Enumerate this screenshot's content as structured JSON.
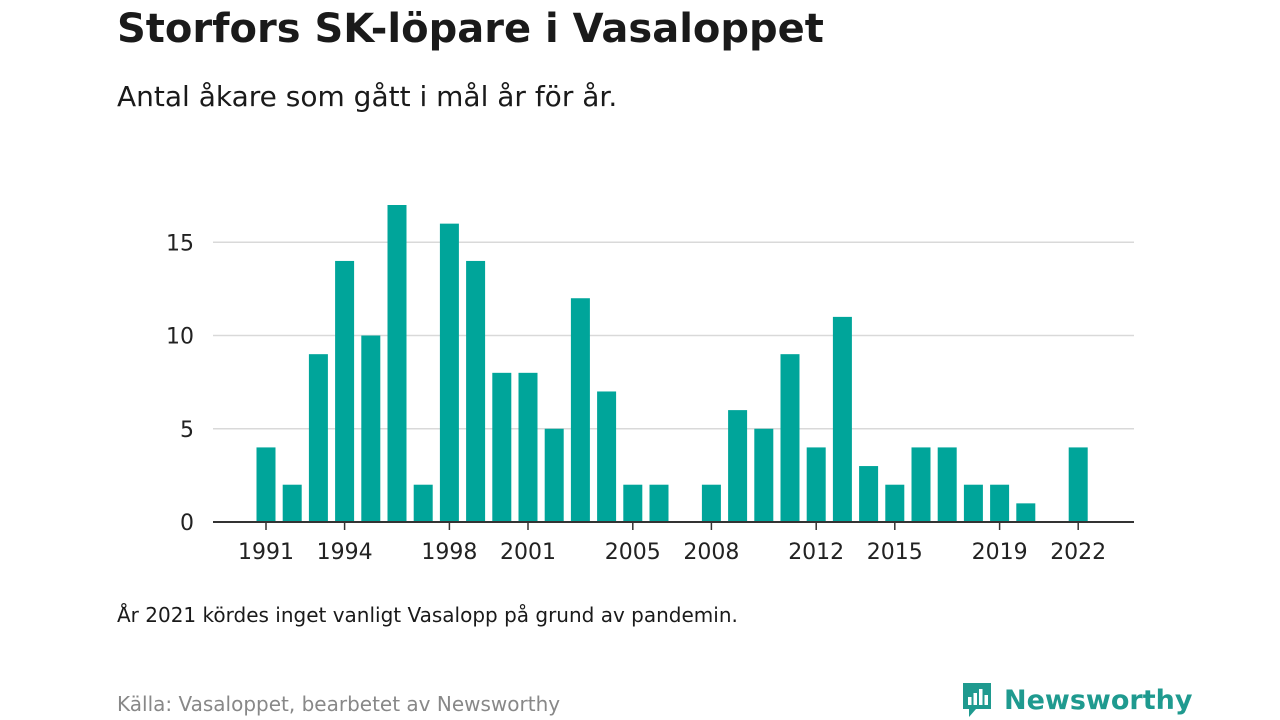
{
  "title": "Storfors SK-löpare i Vasaloppet",
  "subtitle": "Antal åkare som gått i mål år för år.",
  "note": "År 2021 kördes inget vanligt Vasalopp på grund av pandemin.",
  "source": "Källa: Vasaloppet, bearbetet av Newsworthy",
  "brand": {
    "name": "Newsworthy",
    "icon": "newsworthy-logo-icon",
    "color": "#1f9a8f"
  },
  "chart_data": {
    "type": "bar",
    "title": "",
    "xlabel": "",
    "ylabel": "",
    "bar_color": "#00a59a",
    "grid": true,
    "ylim": [
      0,
      17
    ],
    "yticks": [
      0,
      5,
      10,
      15
    ],
    "xticks": [
      1991,
      1994,
      1998,
      2001,
      2005,
      2008,
      2012,
      2015,
      2019,
      2022
    ],
    "categories": [
      1991,
      1992,
      1993,
      1994,
      1995,
      1996,
      1997,
      1998,
      1999,
      2000,
      2001,
      2002,
      2003,
      2004,
      2005,
      2006,
      2007,
      2008,
      2009,
      2010,
      2011,
      2012,
      2013,
      2014,
      2015,
      2016,
      2017,
      2018,
      2019,
      2020,
      2021,
      2022
    ],
    "values": [
      4,
      2,
      9,
      14,
      10,
      17,
      2,
      16,
      14,
      8,
      8,
      5,
      12,
      7,
      2,
      2,
      0,
      2,
      6,
      5,
      9,
      4,
      11,
      3,
      2,
      4,
      4,
      2,
      2,
      1,
      0,
      4
    ]
  }
}
